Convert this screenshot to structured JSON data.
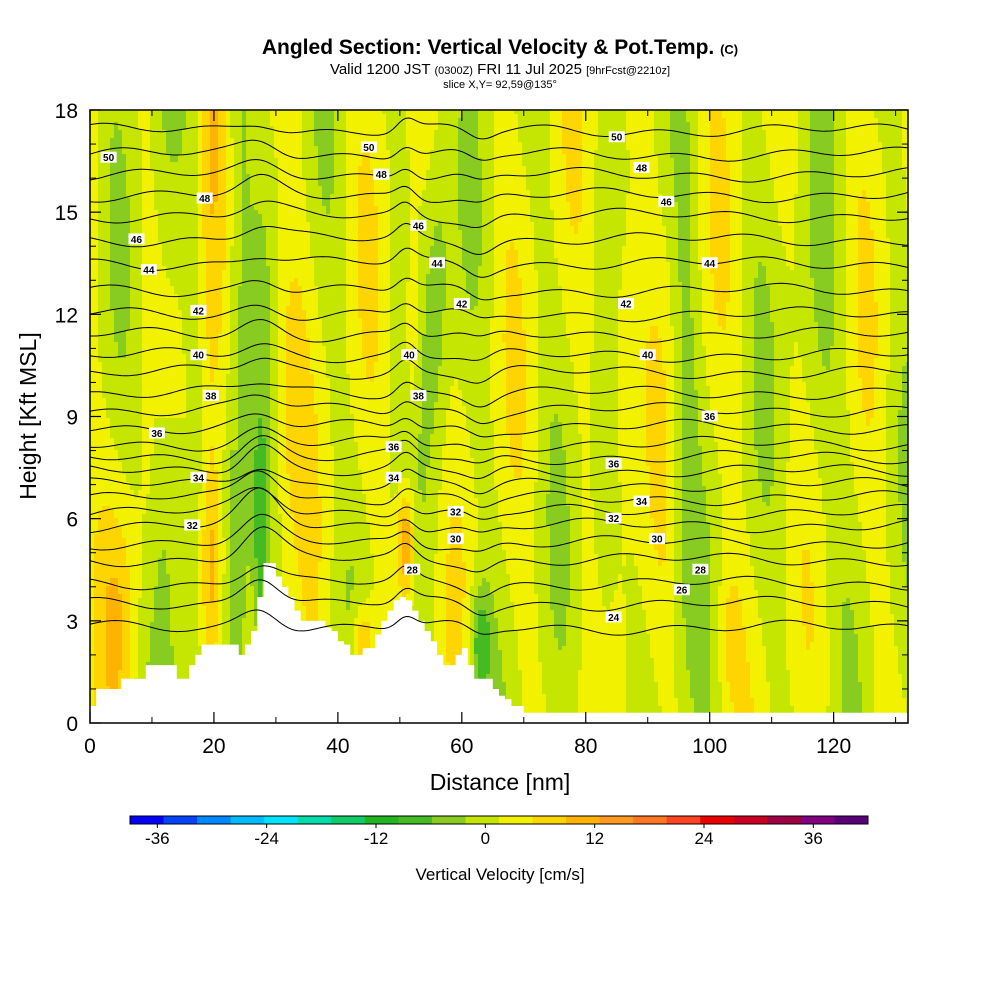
{
  "title": {
    "main": "Angled Section: Vertical Velocity & Pot.Temp.",
    "main_suffix": "(C)",
    "valid_prefix": "Valid 1200 JST",
    "valid_utc": "(0300Z)",
    "valid_date": "FRI 11 Jul 2025",
    "valid_fcst": "[9hrFcst@2210z]",
    "slice": "slice X,Y= 92,59@135°"
  },
  "chart_data": {
    "type": "heatmap",
    "xlabel": "Distance [nm]",
    "ylabel": "Height [Kft MSL]",
    "xlim": [
      0,
      132
    ],
    "ylim": [
      0,
      18
    ],
    "x_ticks": [
      0,
      20,
      40,
      60,
      80,
      100,
      120
    ],
    "y_ticks": [
      0,
      3,
      6,
      9,
      12,
      15,
      18
    ],
    "colorbar": {
      "label": "Vertical Velocity [cm/s]",
      "min": -39,
      "max": 42,
      "tick_values": [
        -36,
        -24,
        -12,
        0,
        12,
        24,
        36
      ],
      "tick_labels": [
        "-36",
        "-24",
        "-12",
        "0",
        "12",
        "24",
        "36"
      ],
      "colors": [
        "#0000ff",
        "#0044ff",
        "#0088ff",
        "#00bbff",
        "#00e5ff",
        "#00ddaa",
        "#11cc66",
        "#22b522",
        "#44bb22",
        "#88cc22",
        "#c5e600",
        "#f2f200",
        "#ffd500",
        "#ffb300",
        "#ff9922",
        "#ff7722",
        "#ff4422",
        "#ee0000",
        "#cc0022",
        "#a00044",
        "#800080",
        "#5a007a"
      ]
    },
    "terrain": [
      [
        0,
        0.5
      ],
      [
        1,
        0.5
      ],
      [
        1,
        1
      ],
      [
        2,
        1
      ],
      [
        3,
        1
      ],
      [
        4,
        1
      ],
      [
        5,
        1.3
      ],
      [
        6,
        1.3
      ],
      [
        7,
        1.3
      ],
      [
        8,
        1.3
      ],
      [
        9,
        1.7
      ],
      [
        10,
        1.7
      ],
      [
        11,
        1.7
      ],
      [
        12,
        1.7
      ],
      [
        13,
        1.7
      ],
      [
        14,
        1.3
      ],
      [
        15,
        1.3
      ],
      [
        16,
        1.7
      ],
      [
        17,
        2
      ],
      [
        18,
        2.3
      ],
      [
        19,
        2.3
      ],
      [
        20,
        2.3
      ],
      [
        21,
        2.3
      ],
      [
        22,
        2.3
      ],
      [
        23,
        2.3
      ],
      [
        24,
        2
      ],
      [
        25,
        2.3
      ],
      [
        26,
        2.7
      ],
      [
        27,
        3.7
      ],
      [
        28,
        4.7
      ],
      [
        29,
        4.7
      ],
      [
        30,
        4.3
      ],
      [
        31,
        4
      ],
      [
        32,
        3.7
      ],
      [
        33,
        3.3
      ],
      [
        34,
        3
      ],
      [
        35,
        3
      ],
      [
        36,
        3
      ],
      [
        37,
        3
      ],
      [
        38,
        2.8
      ],
      [
        39,
        2.7
      ],
      [
        40,
        2.4
      ],
      [
        41,
        2.3
      ],
      [
        42,
        2
      ],
      [
        43,
        2
      ],
      [
        44,
        2.2
      ],
      [
        45,
        2.2
      ],
      [
        46,
        2.6
      ],
      [
        47,
        3
      ],
      [
        48,
        3.3
      ],
      [
        49,
        3.6
      ],
      [
        50,
        3.7
      ],
      [
        51,
        3.6
      ],
      [
        52,
        3.3
      ],
      [
        53,
        3
      ],
      [
        54,
        2.7
      ],
      [
        55,
        2.4
      ],
      [
        56,
        2
      ],
      [
        57,
        1.7
      ],
      [
        58,
        1.7
      ],
      [
        59,
        2
      ],
      [
        60,
        2.2
      ],
      [
        61,
        1.7
      ],
      [
        62,
        1.3
      ],
      [
        63,
        1.3
      ],
      [
        64,
        1.3
      ],
      [
        65,
        1
      ],
      [
        66,
        0.8
      ],
      [
        67,
        0.7
      ],
      [
        68,
        0.5
      ],
      [
        69,
        0.5
      ],
      [
        70,
        0.3
      ],
      [
        71,
        0.3
      ],
      [
        132,
        0.3
      ]
    ],
    "theta_contours": {
      "unit": "C",
      "levels": [
        24,
        25,
        26,
        27,
        28,
        29,
        30,
        31,
        32,
        33,
        34,
        35,
        36,
        37,
        38,
        39,
        40,
        41,
        42,
        43,
        44,
        45,
        46,
        47,
        48,
        49,
        50
      ],
      "base_heights_kft": [
        2.8,
        3.5,
        4.1,
        4.8,
        5.3,
        5.8,
        6.2,
        6.6,
        7.0,
        7.4,
        7.8,
        8.2,
        8.7,
        9.2,
        9.7,
        10.3,
        10.8,
        11.4,
        12.0,
        12.7,
        13.5,
        14.2,
        14.9,
        15.5,
        16.1,
        16.7,
        17.4
      ]
    },
    "contour_labels": [
      {
        "text": "50",
        "x": 3,
        "y": 16.6
      },
      {
        "text": "48",
        "x": 18.5,
        "y": 15.4
      },
      {
        "text": "46",
        "x": 7.5,
        "y": 14.2
      },
      {
        "text": "44",
        "x": 9.5,
        "y": 13.3
      },
      {
        "text": "42",
        "x": 17.5,
        "y": 12.1
      },
      {
        "text": "40",
        "x": 17.5,
        "y": 10.8
      },
      {
        "text": "38",
        "x": 19.5,
        "y": 9.6
      },
      {
        "text": "36",
        "x": 10.8,
        "y": 8.5
      },
      {
        "text": "34",
        "x": 17.5,
        "y": 7.2
      },
      {
        "text": "32",
        "x": 16.5,
        "y": 5.8
      },
      {
        "text": "50",
        "x": 45,
        "y": 16.9
      },
      {
        "text": "48",
        "x": 47,
        "y": 16.1
      },
      {
        "text": "46",
        "x": 53,
        "y": 14.6
      },
      {
        "text": "44",
        "x": 56,
        "y": 13.5
      },
      {
        "text": "42",
        "x": 60,
        "y": 12.3
      },
      {
        "text": "40",
        "x": 51.5,
        "y": 10.8
      },
      {
        "text": "38",
        "x": 53,
        "y": 9.6
      },
      {
        "text": "36",
        "x": 49,
        "y": 8.1
      },
      {
        "text": "34",
        "x": 49,
        "y": 7.2
      },
      {
        "text": "32",
        "x": 59,
        "y": 6.2
      },
      {
        "text": "30",
        "x": 59,
        "y": 5.4
      },
      {
        "text": "28",
        "x": 52,
        "y": 4.5
      },
      {
        "text": "50",
        "x": 85,
        "y": 17.2
      },
      {
        "text": "48",
        "x": 89,
        "y": 16.3
      },
      {
        "text": "46",
        "x": 93,
        "y": 15.3
      },
      {
        "text": "44",
        "x": 100,
        "y": 13.5
      },
      {
        "text": "42",
        "x": 86.5,
        "y": 12.3
      },
      {
        "text": "40",
        "x": 90,
        "y": 10.8
      },
      {
        "text": "36",
        "x": 100,
        "y": 9.0
      },
      {
        "text": "36",
        "x": 84.5,
        "y": 7.6
      },
      {
        "text": "34",
        "x": 89,
        "y": 6.5
      },
      {
        "text": "32",
        "x": 84.5,
        "y": 6.0
      },
      {
        "text": "30",
        "x": 91.5,
        "y": 5.4
      },
      {
        "text": "28",
        "x": 98.5,
        "y": 4.5
      },
      {
        "text": "26",
        "x": 95.5,
        "y": 3.9
      },
      {
        "text": "24",
        "x": 84.5,
        "y": 3.1
      }
    ]
  }
}
